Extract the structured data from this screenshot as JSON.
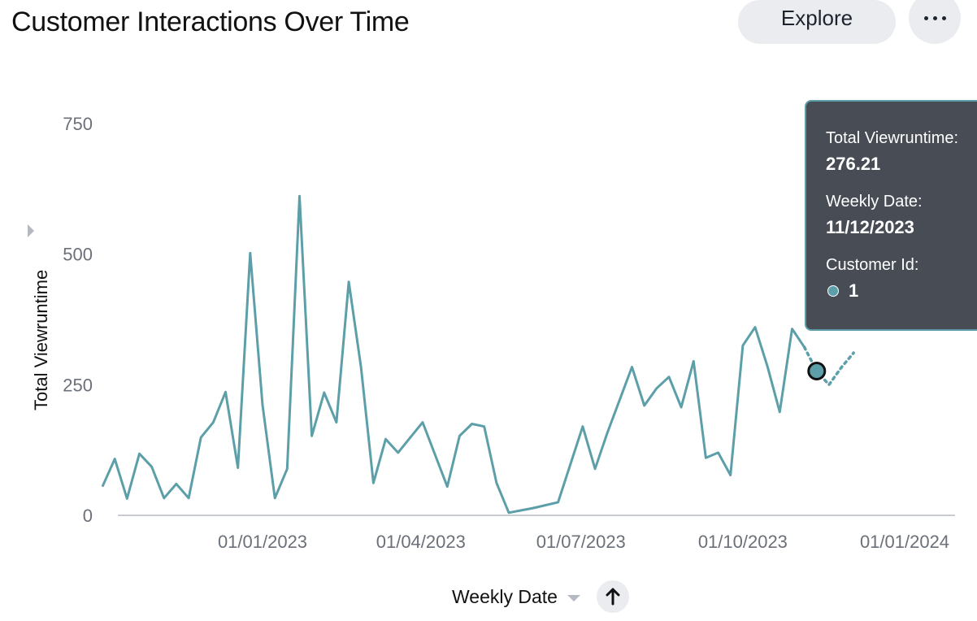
{
  "header": {
    "title": "Customer Interactions Over Time",
    "explore_label": "Explore",
    "more_icon": "more-horizontal-icon"
  },
  "axes": {
    "ylabel": "Total Viewruntime",
    "xlabel": "Weekly Date"
  },
  "tooltip": {
    "metric_label": "Total Viewruntime:",
    "metric_value": "276.21",
    "date_label": "Weekly Date:",
    "date_value": "11/12/2023",
    "group_label": "Customer Id:",
    "group_value": "1"
  },
  "colors": {
    "series": "#5d9fa8",
    "tooltip_bg": "#474c55",
    "button_bg": "#eaecef",
    "tick_text": "#6b7079"
  },
  "chart_data": {
    "type": "line",
    "xlabel": "Weekly Date",
    "ylabel": "Total Viewruntime",
    "ylim": [
      0,
      750
    ],
    "yticks": [
      0,
      250,
      500,
      750
    ],
    "xticks": [
      {
        "label": "01/01/2023",
        "date": "2023-01-01"
      },
      {
        "label": "01/04/2023",
        "date": "2023-04-01"
      },
      {
        "label": "01/07/2023",
        "date": "2023-07-01"
      },
      {
        "label": "01/10/2023",
        "date": "2023-10-01"
      },
      {
        "label": "01/01/2024",
        "date": "2024-01-01"
      }
    ],
    "grid": false,
    "highlighted_point": {
      "date": "2023-11-12",
      "value": 276.21
    },
    "series": [
      {
        "name": "1",
        "points": [
          [
            "2022-10-02",
            55
          ],
          [
            "2022-10-09",
            108
          ],
          [
            "2022-10-16",
            32
          ],
          [
            "2022-10-23",
            118
          ],
          [
            "2022-10-30",
            93
          ],
          [
            "2022-11-06",
            33
          ],
          [
            "2022-11-13",
            60
          ],
          [
            "2022-11-20",
            33
          ],
          [
            "2022-11-27",
            149
          ],
          [
            "2022-12-04",
            178
          ],
          [
            "2022-12-11",
            236
          ],
          [
            "2022-12-18",
            91
          ],
          [
            "2022-12-25",
            502
          ],
          [
            "2023-01-01",
            211
          ],
          [
            "2023-01-08",
            33
          ],
          [
            "2023-01-15",
            89
          ],
          [
            "2023-01-22",
            611
          ],
          [
            "2023-01-29",
            152
          ],
          [
            "2023-02-05",
            235
          ],
          [
            "2023-02-12",
            178
          ],
          [
            "2023-02-19",
            447
          ],
          [
            "2023-02-26",
            283
          ],
          [
            "2023-03-05",
            62
          ],
          [
            "2023-03-12",
            146
          ],
          [
            "2023-03-19",
            120
          ],
          [
            "2023-03-26",
            149
          ],
          [
            "2023-04-02",
            178
          ],
          [
            "2023-04-16",
            55
          ],
          [
            "2023-04-23",
            152
          ],
          [
            "2023-04-30",
            175
          ],
          [
            "2023-05-07",
            170
          ],
          [
            "2023-05-14",
            62
          ],
          [
            "2023-05-21",
            5
          ],
          [
            "2023-06-04",
            14
          ],
          [
            "2023-06-18",
            25
          ],
          [
            "2023-07-02",
            170
          ],
          [
            "2023-07-09",
            89
          ],
          [
            "2023-07-16",
            158
          ],
          [
            "2023-07-30",
            284
          ],
          [
            "2023-08-06",
            210
          ],
          [
            "2023-08-13",
            243
          ],
          [
            "2023-08-20",
            265
          ],
          [
            "2023-08-27",
            207
          ],
          [
            "2023-09-03",
            295
          ],
          [
            "2023-09-10",
            110
          ],
          [
            "2023-09-17",
            120
          ],
          [
            "2023-09-24",
            77
          ],
          [
            "2023-10-01",
            325
          ],
          [
            "2023-10-08",
            360
          ],
          [
            "2023-10-15",
            285
          ],
          [
            "2023-10-22",
            198
          ],
          [
            "2023-10-29",
            357
          ],
          [
            "2023-11-05",
            322
          ]
        ],
        "projected_points": [
          [
            "2023-11-05",
            322
          ],
          [
            "2023-11-12",
            276.21
          ],
          [
            "2023-11-19",
            250
          ],
          [
            "2023-11-26",
            283
          ],
          [
            "2023-12-03",
            311
          ]
        ]
      }
    ]
  }
}
